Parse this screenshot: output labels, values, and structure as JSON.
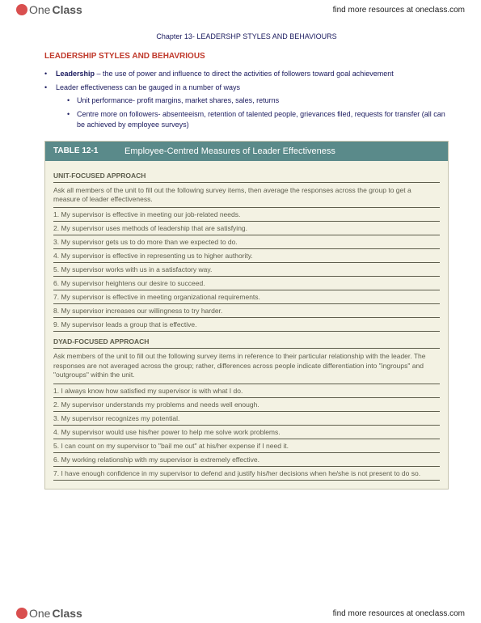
{
  "logo_text_one": "One",
  "logo_text_class": "Class",
  "find_link": "find more resources at oneclass.com",
  "chapter_title": "Chapter 13- LEADERSHP STYLES AND BEHAVIOURS",
  "section_title": "LEADERSHIP STYLES AND BEHAVRIOUS",
  "bullet1_prefix": "Leadership",
  "bullet1": " – the use of power and influence to direct the activities of followers toward goal achievement",
  "bullet2": "Leader effectiveness can be gauged in a number of ways",
  "sub1": "Unit performance- profit margins, market shares, sales, returns",
  "sub2": "Centre more on followers- absenteeism, retention of talented people, grievances filed, requests for transfer (all can be achieved by employee surveys)",
  "table_label": "TABLE 12-1",
  "table_title": "Employee-Centred Measures of Leader Effectiveness",
  "unit_header": "UNIT-FOCUSED APPROACH",
  "unit_instruction": "Ask all members of the unit to fill out the following survey items, then average the responses across the group to get a measure of leader effectiveness.",
  "unit_items": [
    "1. My supervisor is effective in meeting our job-related needs.",
    "2. My supervisor uses methods of leadership that are satisfying.",
    "3. My supervisor gets us to do more than we expected to do.",
    "4. My supervisor is effective in representing us to higher authority.",
    "5. My supervisor works with us in a satisfactory way.",
    "6. My supervisor heightens our desire to succeed.",
    "7. My supervisor is effective in meeting organizational requirements.",
    "8. My supervisor increases our willingness to try harder.",
    "9. My supervisor leads a group that is effective."
  ],
  "dyad_header": "DYAD-FOCUSED APPROACH",
  "dyad_instruction": "Ask members of the unit to fill out the following survey items in reference to their particular relationship with the leader. The responses are not averaged across the group; rather, differences across people indicate differentiation into \"ingroups\" and \"outgroups\" within the unit.",
  "dyad_items": [
    "1. I always know how satisfied my supervisor is with what I do.",
    "2. My supervisor understands my problems and needs well enough.",
    "3. My supervisor recognizes my potential.",
    "4. My supervisor would use his/her power to help me solve work problems.",
    "5. I can count on my supervisor to \"bail me out\" at his/her expense if I need it.",
    "6. My working relationship with my supervisor is extremely effective.",
    "7. I have enough confidence in my supervisor to defend and justify his/her decisions when he/she is not present to do so."
  ],
  "colors": {
    "title_text": "#1a1a5e",
    "section_red": "#c0392b",
    "table_header_bg": "#5a8a8a",
    "table_body_bg": "#f3f2e3",
    "table_text": "#5e5e4d",
    "logo_circle": "#d94f4f"
  }
}
